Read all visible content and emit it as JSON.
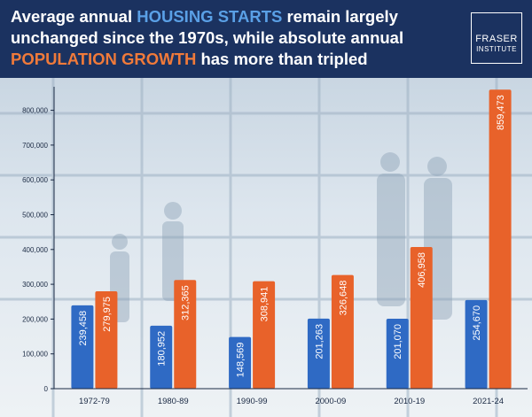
{
  "header": {
    "title_line1_pre": "Average annual ",
    "title_line1_hl": "HOUSING STARTS",
    "title_line1_post": " remain largely",
    "title_line2": "unchanged since the 1970s, while absolute annual",
    "title_line3_hl": "POPULATION GROWTH",
    "title_line3_post": " has more than tripled"
  },
  "logo": {
    "line1": "FRASER",
    "line2": "INSTITUTE"
  },
  "colors": {
    "housing": "#2f6ac4",
    "population": "#e8622a",
    "header": "#1b3260"
  },
  "chart_data": {
    "type": "bar",
    "categories": [
      "1972-79",
      "1980-89",
      "1990-99",
      "2000-09",
      "2010-19",
      "2021-24"
    ],
    "series": [
      {
        "name": "",
        "values": [
          239458,
          180952,
          148569,
          201263,
          201070,
          254670
        ],
        "labels": [
          "239,458",
          "180,952",
          "148,569",
          "201,263",
          "201,070",
          "254,670"
        ]
      },
      {
        "name": "",
        "values": [
          279975,
          312365,
          308941,
          326648,
          406958,
          859473
        ],
        "labels": [
          "279,975",
          "312,365",
          "308,941",
          "326,648",
          "406,958",
          "859,473"
        ]
      }
    ],
    "yticks": [
      0,
      100000,
      200000,
      300000,
      400000,
      500000,
      600000,
      700000,
      800000
    ],
    "ytick_labels": [
      "0",
      "100,000",
      "200,000",
      "300,000",
      "400,000",
      "500,000",
      "600,000",
      "700,000",
      "800,000"
    ],
    "ylim": [
      0,
      860000
    ],
    "grid": false
  }
}
